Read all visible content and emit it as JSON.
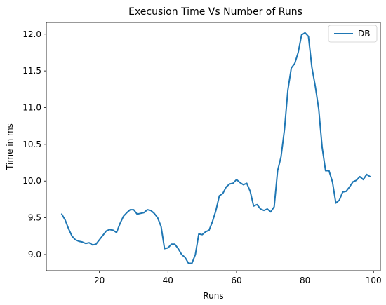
{
  "chart_data": {
    "type": "line",
    "title": "Execusion Time Vs Number of Runs",
    "xlabel": "Runs",
    "ylabel": "Time in ms",
    "xlim": [
      4.5,
      102
    ],
    "ylim": [
      8.78,
      12.16
    ],
    "xticks": [
      20,
      40,
      60,
      80,
      100
    ],
    "yticks": [
      9.0,
      9.5,
      10.0,
      10.5,
      11.0,
      11.5,
      12.0
    ],
    "grid": false,
    "legend_position": "top-right",
    "series": [
      {
        "name": "DB",
        "color": "#1f77b4",
        "x": [
          9,
          10,
          11,
          12,
          13,
          14,
          15,
          16,
          17,
          18,
          19,
          20,
          21,
          22,
          23,
          24,
          25,
          26,
          27,
          28,
          29,
          30,
          31,
          32,
          33,
          34,
          35,
          36,
          37,
          38,
          39,
          40,
          41,
          42,
          43,
          44,
          45,
          46,
          47,
          48,
          49,
          50,
          51,
          52,
          53,
          54,
          55,
          56,
          57,
          58,
          59,
          60,
          61,
          62,
          63,
          64,
          65,
          66,
          67,
          68,
          69,
          70,
          71,
          72,
          73,
          74,
          75,
          76,
          77,
          78,
          79,
          80,
          81,
          82,
          83,
          84,
          85,
          86,
          87,
          88,
          89,
          90,
          91,
          92,
          93,
          94,
          95,
          96,
          97,
          98,
          99
        ],
        "y": [
          9.55,
          9.47,
          9.35,
          9.25,
          9.2,
          9.18,
          9.17,
          9.15,
          9.16,
          9.13,
          9.14,
          9.2,
          9.26,
          9.32,
          9.34,
          9.33,
          9.3,
          9.42,
          9.52,
          9.57,
          9.61,
          9.61,
          9.55,
          9.56,
          9.57,
          9.61,
          9.6,
          9.56,
          9.5,
          9.38,
          9.08,
          9.09,
          9.14,
          9.14,
          9.08,
          9.0,
          8.96,
          8.88,
          8.88,
          9.0,
          9.28,
          9.27,
          9.31,
          9.33,
          9.45,
          9.6,
          9.8,
          9.83,
          9.92,
          9.96,
          9.97,
          10.02,
          9.98,
          9.95,
          9.97,
          9.86,
          9.66,
          9.68,
          9.62,
          9.6,
          9.62,
          9.58,
          9.65,
          10.14,
          10.33,
          10.7,
          11.24,
          11.54,
          11.6,
          11.75,
          11.99,
          12.02,
          11.97,
          11.55,
          11.29,
          10.98,
          10.46,
          10.14,
          10.14,
          9.99,
          9.7,
          9.74,
          9.85,
          9.86,
          9.92,
          9.99,
          10.01,
          10.06,
          10.02,
          10.09,
          10.06
        ]
      }
    ]
  }
}
